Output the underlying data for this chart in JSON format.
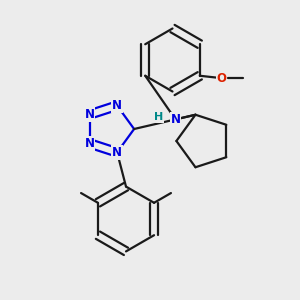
{
  "bg": "#ececec",
  "bc": "#1a1a1a",
  "nc": "#0000dd",
  "oc": "#dd2200",
  "hc": "#008888",
  "lw": 1.6,
  "dbg": 0.014,
  "figsize": [
    3.0,
    3.0
  ],
  "dpi": 100,
  "xlim": [
    0.0,
    1.0
  ],
  "ylim": [
    0.0,
    1.0
  ]
}
